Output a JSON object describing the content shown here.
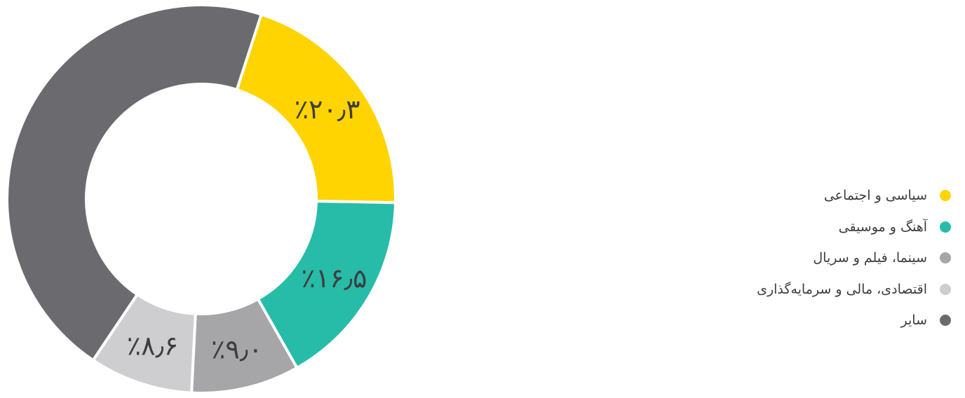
{
  "chart_data": {
    "type": "pie",
    "categories": [
      "سیاسی و اجتماعی",
      "آهنگ و موسیقی",
      "سینما، فیلم و سریال",
      "اقتصادی، مالی و سرمایه‌گذاری",
      "سایر"
    ],
    "values": [
      20.3,
      16.5,
      9.0,
      8.6,
      45.6
    ],
    "data_labels": [
      "٪۲۰٫۳",
      "٪۱۶٫۵",
      "٪۹٫۰",
      "٪۸٫۶",
      ""
    ],
    "colors": [
      "#FFD400",
      "#26BCA8",
      "#A6A6A9",
      "#CECED0",
      "#6B6B6F"
    ],
    "donut": true,
    "start": "top, clockwise",
    "legend_position": "right"
  }
}
